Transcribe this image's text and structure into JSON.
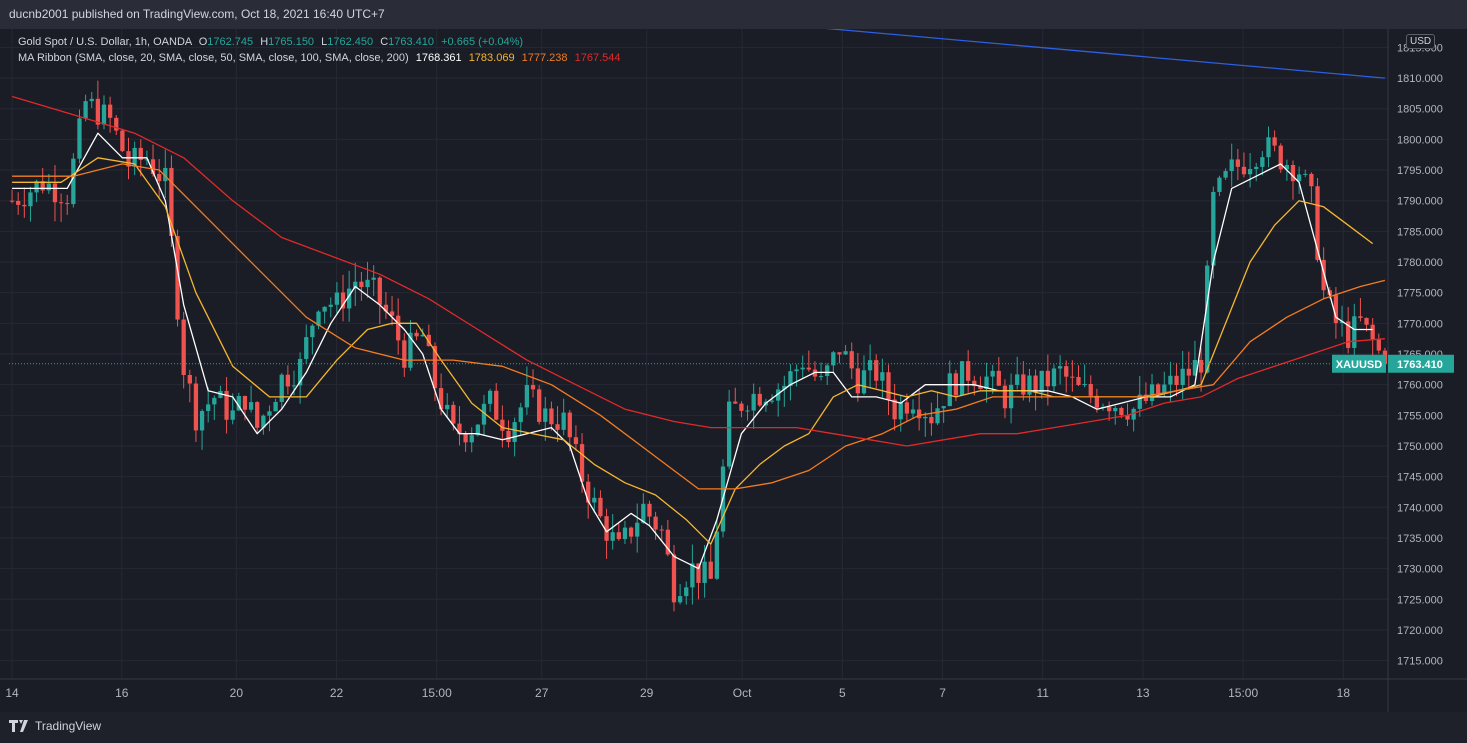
{
  "header": {
    "publish_line": "ducnb2001 published on TradingView.com, Oct 18, 2021 16:40 UTC+7"
  },
  "legend": {
    "symbol": "Gold Spot / U.S. Dollar, 1h, OANDA",
    "o_label": "O",
    "o_value": "1762.745",
    "h_label": "H",
    "h_value": "1765.150",
    "l_label": "L",
    "l_value": "1762.450",
    "c_label": "C",
    "c_value": "1763.410",
    "change": "+0.665 (+0.04%)",
    "ma_label": "MA Ribbon (SMA, close, 20, SMA, close, 50, SMA, close, 100, SMA, close, 200)",
    "ma_values": [
      "1768.361",
      "1783.069",
      "1777.238",
      "1767.544"
    ]
  },
  "price_badge": {
    "symbol": "XAUUSD",
    "value": "1763.410"
  },
  "currency": "USD",
  "footer": {
    "brand": "TradingView"
  },
  "colors": {
    "up": "#26a69a",
    "down": "#ef5350",
    "ma20": "#ffffff",
    "ma50": "#f5b731",
    "ma100": "#f57c1f",
    "ma200": "#e02a2a",
    "trendline": "#2f5fe0"
  },
  "chart_data": {
    "type": "candlestick",
    "timeframe": "1h",
    "ylim": [
      1712,
      1818
    ],
    "y_ticks": [
      1715,
      1720,
      1725,
      1730,
      1735,
      1740,
      1745,
      1750,
      1755,
      1760,
      1765,
      1770,
      1775,
      1780,
      1785,
      1790,
      1795,
      1800,
      1805,
      1810,
      1815
    ],
    "x_ticks": [
      "14",
      "16",
      "20",
      "22",
      "15:00",
      "27",
      "29",
      "Oct",
      "5",
      "7",
      "11",
      "13",
      "15:00",
      "18"
    ],
    "price_path": [
      [
        0,
        1790
      ],
      [
        5,
        1793
      ],
      [
        9,
        1791
      ],
      [
        12,
        1806
      ],
      [
        16,
        1803
      ],
      [
        19,
        1796
      ],
      [
        22,
        1797
      ],
      [
        25,
        1793
      ],
      [
        28,
        1763
      ],
      [
        30,
        1755
      ],
      [
        33,
        1758
      ],
      [
        36,
        1755
      ],
      [
        38,
        1758
      ],
      [
        40,
        1753
      ],
      [
        44,
        1761
      ],
      [
        47,
        1763
      ],
      [
        50,
        1774
      ],
      [
        53,
        1773
      ],
      [
        56,
        1777
      ],
      [
        59,
        1775
      ],
      [
        62,
        1770
      ],
      [
        64,
        1765
      ],
      [
        67,
        1768
      ],
      [
        69,
        1760
      ],
      [
        72,
        1752
      ],
      [
        75,
        1753
      ],
      [
        78,
        1757
      ],
      [
        81,
        1753
      ],
      [
        84,
        1758
      ],
      [
        87,
        1755
      ],
      [
        90,
        1754
      ],
      [
        93,
        1745
      ],
      [
        96,
        1738
      ],
      [
        99,
        1733
      ],
      [
        103,
        1740
      ],
      [
        106,
        1736
      ],
      [
        108,
        1727
      ],
      [
        111,
        1730
      ],
      [
        114,
        1728
      ],
      [
        117,
        1755
      ],
      [
        120,
        1758
      ],
      [
        123,
        1759
      ],
      [
        126,
        1760
      ],
      [
        129,
        1764
      ],
      [
        132,
        1760
      ],
      [
        135,
        1766
      ],
      [
        138,
        1761
      ],
      [
        141,
        1762
      ],
      [
        144,
        1756
      ],
      [
        147,
        1758
      ],
      [
        150,
        1755
      ],
      [
        153,
        1760
      ],
      [
        156,
        1762
      ],
      [
        159,
        1761
      ],
      [
        162,
        1758
      ],
      [
        165,
        1760
      ],
      [
        168,
        1760
      ],
      [
        171,
        1762
      ],
      [
        174,
        1759
      ],
      [
        177,
        1758
      ],
      [
        180,
        1757
      ],
      [
        183,
        1756
      ],
      [
        186,
        1758
      ],
      [
        189,
        1760
      ],
      [
        192,
        1762
      ],
      [
        194,
        1764
      ],
      [
        196,
        1790
      ],
      [
        199,
        1795
      ],
      [
        202,
        1797
      ],
      [
        204,
        1799
      ],
      [
        207,
        1797
      ],
      [
        210,
        1795
      ],
      [
        212,
        1790
      ],
      [
        214,
        1775
      ],
      [
        216,
        1770
      ],
      [
        218,
        1768
      ],
      [
        220,
        1770
      ],
      [
        222,
        1767
      ],
      [
        224,
        1763.41
      ]
    ],
    "series": [
      {
        "name": "SMA 20",
        "color": "#ffffff",
        "points": [
          [
            0,
            1792
          ],
          [
            5,
            1792
          ],
          [
            9,
            1792
          ],
          [
            14,
            1801
          ],
          [
            18,
            1797
          ],
          [
            22,
            1797
          ],
          [
            25,
            1790
          ],
          [
            28,
            1773
          ],
          [
            32,
            1759
          ],
          [
            36,
            1758
          ],
          [
            40,
            1752
          ],
          [
            44,
            1756
          ],
          [
            48,
            1762
          ],
          [
            52,
            1770
          ],
          [
            56,
            1776
          ],
          [
            60,
            1773
          ],
          [
            64,
            1769
          ],
          [
            67,
            1765
          ],
          [
            70,
            1756
          ],
          [
            73,
            1752
          ],
          [
            76,
            1752
          ],
          [
            80,
            1751
          ],
          [
            84,
            1752
          ],
          [
            88,
            1753
          ],
          [
            91,
            1750
          ],
          [
            94,
            1741
          ],
          [
            97,
            1736
          ],
          [
            101,
            1739
          ],
          [
            104,
            1737
          ],
          [
            108,
            1732
          ],
          [
            112,
            1730
          ],
          [
            115,
            1738
          ],
          [
            119,
            1752
          ],
          [
            123,
            1757
          ],
          [
            127,
            1760
          ],
          [
            131,
            1762
          ],
          [
            134,
            1762
          ],
          [
            137,
            1758
          ],
          [
            141,
            1758
          ],
          [
            145,
            1757
          ],
          [
            149,
            1760
          ],
          [
            153,
            1760
          ],
          [
            157,
            1760
          ],
          [
            161,
            1759
          ],
          [
            165,
            1759
          ],
          [
            169,
            1759
          ],
          [
            173,
            1758
          ],
          [
            177,
            1756
          ],
          [
            181,
            1757
          ],
          [
            185,
            1758
          ],
          [
            189,
            1758
          ],
          [
            193,
            1760
          ],
          [
            196,
            1780
          ],
          [
            199,
            1792
          ],
          [
            203,
            1794
          ],
          [
            207,
            1796
          ],
          [
            210,
            1793
          ],
          [
            213,
            1782
          ],
          [
            216,
            1771
          ],
          [
            219,
            1769
          ],
          [
            222,
            1769
          ]
        ]
      },
      {
        "name": "SMA 50",
        "color": "#f5b731",
        "points": [
          [
            0,
            1793
          ],
          [
            8,
            1793
          ],
          [
            14,
            1797
          ],
          [
            20,
            1796
          ],
          [
            25,
            1789
          ],
          [
            30,
            1775
          ],
          [
            36,
            1763
          ],
          [
            42,
            1758
          ],
          [
            48,
            1758
          ],
          [
            53,
            1764
          ],
          [
            58,
            1769
          ],
          [
            62,
            1770
          ],
          [
            66,
            1770
          ],
          [
            70,
            1764
          ],
          [
            75,
            1757
          ],
          [
            80,
            1753
          ],
          [
            85,
            1752
          ],
          [
            90,
            1751
          ],
          [
            95,
            1747
          ],
          [
            100,
            1744
          ],
          [
            105,
            1742
          ],
          [
            110,
            1738
          ],
          [
            114,
            1734
          ],
          [
            118,
            1743
          ],
          [
            122,
            1747
          ],
          [
            126,
            1750
          ],
          [
            130,
            1752
          ],
          [
            134,
            1758
          ],
          [
            138,
            1760
          ],
          [
            142,
            1759
          ],
          [
            146,
            1758
          ],
          [
            150,
            1759
          ],
          [
            154,
            1758
          ],
          [
            158,
            1759
          ],
          [
            162,
            1759
          ],
          [
            166,
            1759
          ],
          [
            170,
            1758
          ],
          [
            174,
            1758
          ],
          [
            178,
            1758
          ],
          [
            182,
            1758
          ],
          [
            186,
            1758
          ],
          [
            190,
            1759
          ],
          [
            194,
            1760
          ],
          [
            198,
            1770
          ],
          [
            202,
            1780
          ],
          [
            206,
            1786
          ],
          [
            210,
            1790
          ],
          [
            214,
            1789
          ],
          [
            218,
            1786
          ],
          [
            222,
            1783
          ]
        ]
      },
      {
        "name": "SMA 100",
        "color": "#f57c1f",
        "points": [
          [
            0,
            1794
          ],
          [
            10,
            1794
          ],
          [
            18,
            1796
          ],
          [
            24,
            1795
          ],
          [
            32,
            1787
          ],
          [
            40,
            1779
          ],
          [
            48,
            1771
          ],
          [
            56,
            1766
          ],
          [
            64,
            1764
          ],
          [
            72,
            1764
          ],
          [
            80,
            1763
          ],
          [
            88,
            1760
          ],
          [
            96,
            1755
          ],
          [
            104,
            1749
          ],
          [
            112,
            1743
          ],
          [
            118,
            1743
          ],
          [
            124,
            1744
          ],
          [
            130,
            1746
          ],
          [
            136,
            1750
          ],
          [
            142,
            1752
          ],
          [
            148,
            1755
          ],
          [
            154,
            1756
          ],
          [
            160,
            1758
          ],
          [
            166,
            1758
          ],
          [
            172,
            1758
          ],
          [
            178,
            1758
          ],
          [
            184,
            1758
          ],
          [
            190,
            1759
          ],
          [
            196,
            1760
          ],
          [
            202,
            1767
          ],
          [
            208,
            1771
          ],
          [
            214,
            1774
          ],
          [
            220,
            1776
          ],
          [
            224,
            1777
          ]
        ]
      },
      {
        "name": "SMA 200",
        "color": "#e02a2a",
        "points": [
          [
            0,
            1807
          ],
          [
            10,
            1804
          ],
          [
            20,
            1801
          ],
          [
            28,
            1797
          ],
          [
            36,
            1790
          ],
          [
            44,
            1784
          ],
          [
            52,
            1781
          ],
          [
            60,
            1778
          ],
          [
            68,
            1774
          ],
          [
            76,
            1769
          ],
          [
            84,
            1764
          ],
          [
            92,
            1760
          ],
          [
            100,
            1756
          ],
          [
            108,
            1754
          ],
          [
            114,
            1753
          ],
          [
            120,
            1753
          ],
          [
            128,
            1753
          ],
          [
            134,
            1752
          ],
          [
            140,
            1751
          ],
          [
            146,
            1750
          ],
          [
            152,
            1751
          ],
          [
            158,
            1752
          ],
          [
            164,
            1752
          ],
          [
            170,
            1753
          ],
          [
            176,
            1754
          ],
          [
            182,
            1755
          ],
          [
            188,
            1757
          ],
          [
            194,
            1758
          ],
          [
            200,
            1761
          ],
          [
            206,
            1763
          ],
          [
            212,
            1765
          ],
          [
            218,
            1767
          ],
          [
            224,
            1767.5
          ]
        ]
      },
      {
        "name": "trendline",
        "color": "#2f5fe0",
        "points": [
          [
            117,
            1819.5
          ],
          [
            224,
            1810
          ]
        ]
      }
    ],
    "last_price": 1763.41,
    "bar_count": 225
  }
}
